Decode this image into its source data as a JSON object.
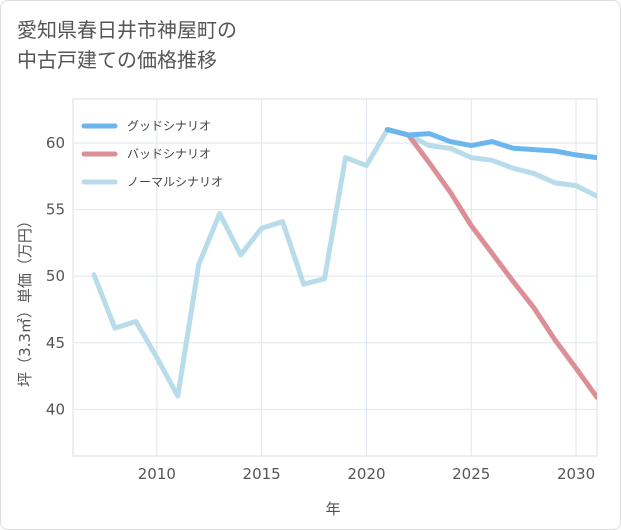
{
  "title": {
    "line1": "愛知県春日井市神屋町の",
    "line2": "中古戸建ての価格推移"
  },
  "chart_data": {
    "type": "line",
    "xlabel": "年",
    "ylabel": "坪（3.3㎡）単価（万円）",
    "xlim": [
      2006,
      2031
    ],
    "ylim": [
      36.5,
      63.3
    ],
    "xticks": [
      2010,
      2015,
      2020,
      2025,
      2030
    ],
    "yticks": [
      40,
      45,
      50,
      55,
      60
    ],
    "grid": true,
    "legend_position": "top-left",
    "series": [
      {
        "name": "グッドシナリオ",
        "color": "#6cb6ee",
        "x": [
          2021,
          2022,
          2023,
          2024,
          2025,
          2026,
          2027,
          2028,
          2029,
          2030,
          2031
        ],
        "values": [
          61.0,
          60.6,
          60.7,
          60.1,
          59.8,
          60.1,
          59.6,
          59.5,
          59.4,
          59.1,
          58.9
        ]
      },
      {
        "name": "バッドシナリオ",
        "color": "#dc8f97",
        "x": [
          2021,
          2022,
          2023,
          2024,
          2025,
          2026,
          2027,
          2028,
          2029,
          2030,
          2031
        ],
        "values": [
          61.0,
          60.6,
          58.5,
          56.3,
          53.8,
          51.7,
          49.6,
          47.6,
          45.2,
          43.1,
          40.9
        ]
      },
      {
        "name": "ノーマルシナリオ",
        "color": "#b8dce9",
        "x": [
          2007,
          2008,
          2009,
          2010,
          2011,
          2012,
          2013,
          2014,
          2015,
          2016,
          2017,
          2018,
          2019,
          2020,
          2021,
          2022,
          2023,
          2024,
          2025,
          2026,
          2027,
          2028,
          2029,
          2030,
          2031
        ],
        "values": [
          50.1,
          46.1,
          46.6,
          43.9,
          41.0,
          50.9,
          54.7,
          51.6,
          53.6,
          54.1,
          49.4,
          49.8,
          58.9,
          58.3,
          61.0,
          60.6,
          59.8,
          59.6,
          58.9,
          58.7,
          58.1,
          57.7,
          57.0,
          56.8,
          56.0
        ]
      }
    ]
  }
}
